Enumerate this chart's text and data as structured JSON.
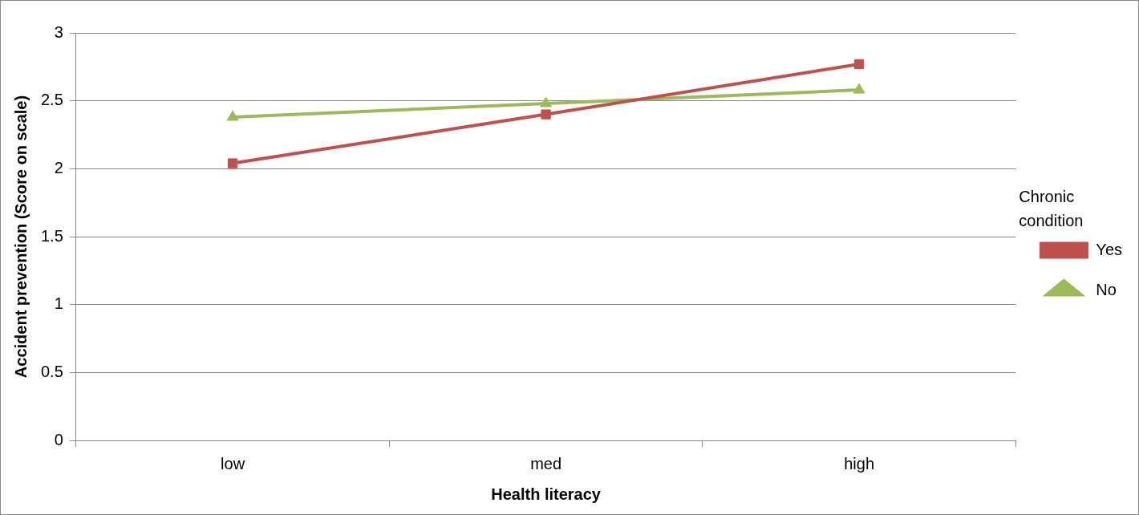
{
  "chart_data": {
    "type": "line",
    "xlabel": "Health literacy",
    "ylabel": "Accident prevention (Score on scale)",
    "legend_title": "Chronic condition",
    "categories": [
      "low",
      "med",
      "high"
    ],
    "series": [
      {
        "name": "Yes",
        "color": "#c0504d",
        "marker": "square",
        "values": [
          2.04,
          2.4,
          2.77
        ]
      },
      {
        "name": "No",
        "color": "#9bbb59",
        "marker": "triangle",
        "values": [
          2.38,
          2.48,
          2.58
        ]
      }
    ],
    "ylim": [
      0,
      3
    ],
    "yticks": [
      0,
      0.5,
      1,
      1.5,
      2,
      2.5,
      3
    ],
    "grid": "y",
    "legend": "right",
    "line_style": "solid"
  }
}
